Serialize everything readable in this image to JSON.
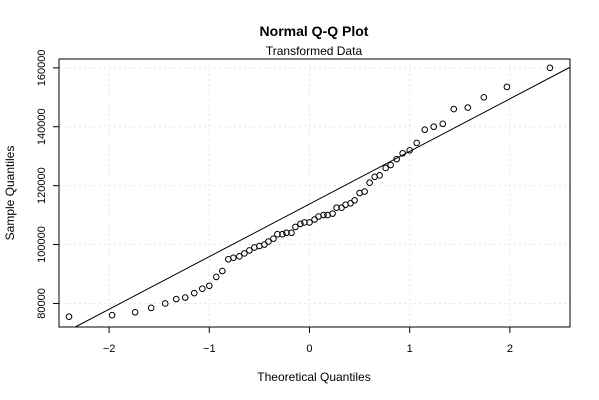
{
  "chart_data": {
    "type": "scatter",
    "title": "Normal Q-Q Plot",
    "subtitle": "Transformed Data",
    "xlabel": "Theoretical Quantiles",
    "ylabel": "Sample Quantiles",
    "xlim": [
      -2.5,
      2.6
    ],
    "ylim": [
      72000,
      163000
    ],
    "x_ticks": [
      -2,
      -1,
      0,
      1,
      2
    ],
    "x_tick_labels": [
      "−2",
      "−1",
      "0",
      "1",
      "2"
    ],
    "y_ticks": [
      80000,
      100000,
      120000,
      140000,
      160000
    ],
    "y_tick_labels": [
      "80000",
      "100000",
      "120000",
      "140000",
      "160000"
    ],
    "grid": true,
    "points": {
      "x": [
        -2.4,
        -1.97,
        -1.74,
        -1.58,
        -1.44,
        -1.33,
        -1.24,
        -1.15,
        -1.07,
        -1.0,
        -0.93,
        -0.87,
        -0.81,
        -0.76,
        -0.7,
        -0.65,
        -0.6,
        -0.55,
        -0.5,
        -0.45,
        -0.41,
        -0.36,
        -0.32,
        -0.27,
        -0.23,
        -0.18,
        -0.14,
        -0.09,
        -0.05,
        0.0,
        0.05,
        0.09,
        0.14,
        0.18,
        0.23,
        0.27,
        0.32,
        0.36,
        0.41,
        0.45,
        0.5,
        0.55,
        0.6,
        0.65,
        0.7,
        0.76,
        0.81,
        0.87,
        0.93,
        1.0,
        1.07,
        1.15,
        1.24,
        1.33,
        1.44,
        1.58,
        1.74,
        1.97,
        2.4
      ],
      "y": [
        75500,
        76000,
        77000,
        78500,
        80000,
        81500,
        82000,
        83500,
        85000,
        86000,
        89000,
        91000,
        95000,
        95500,
        96000,
        97000,
        98000,
        99000,
        99500,
        100000,
        101000,
        102000,
        103500,
        103500,
        104000,
        104000,
        106000,
        107000,
        107500,
        107500,
        108500,
        109500,
        110000,
        110000,
        110500,
        112500,
        112500,
        113500,
        114000,
        115000,
        117500,
        118000,
        121000,
        123000,
        123500,
        126000,
        127000,
        129000,
        131000,
        132000,
        134500,
        139000,
        140000,
        141000,
        146000,
        146500,
        150000,
        153500,
        160000
      ]
    },
    "reference_line": {
      "x": [
        -2.5,
        2.6
      ],
      "y": [
        69100,
        160200
      ]
    }
  }
}
